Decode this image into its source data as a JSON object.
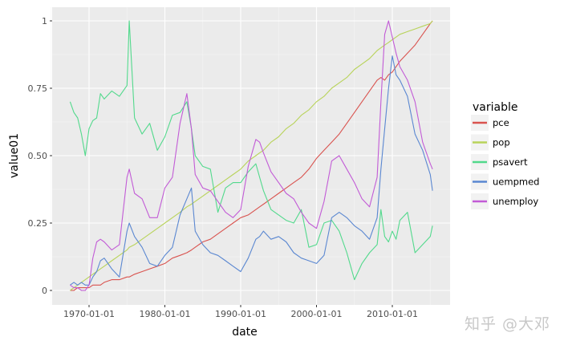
{
  "chart_data": {
    "type": "line",
    "title": "",
    "xlabel": "date",
    "ylabel": "value01",
    "x_ticks": [
      "1970-01-01",
      "1980-01-01",
      "1990-01-01",
      "2000-01-01",
      "2010-01-01"
    ],
    "y_ticks": [
      "0",
      "0.25",
      "0.50",
      "0.75",
      "1"
    ],
    "ylim": [
      -0.05,
      1.05
    ],
    "xlim": [
      1965.1,
      2017.6
    ],
    "grid": true,
    "legend": {
      "title": "variable",
      "position": "right"
    },
    "x": [
      1967.5,
      1968,
      1968.5,
      1969,
      1969.5,
      1970,
      1970.5,
      1971,
      1971.5,
      1972,
      1973,
      1974,
      1975,
      1975.3,
      1976,
      1977,
      1978,
      1979,
      1980,
      1981,
      1982,
      1982.9,
      1983.5,
      1984,
      1985,
      1986,
      1987,
      1988,
      1989,
      1990,
      1991,
      1992,
      1992.5,
      1993,
      1994,
      1995,
      1996,
      1997,
      1998,
      1999,
      2000,
      2001,
      2002,
      2003,
      2004,
      2005,
      2006,
      2007,
      2008,
      2008.5,
      2009,
      2009.5,
      2010,
      2010.5,
      2011,
      2012,
      2013,
      2014,
      2015,
      2015.3
    ],
    "series": [
      {
        "name": "pce",
        "color": "#d9534f",
        "values": [
          0.0,
          0.0,
          0.01,
          0.01,
          0.01,
          0.01,
          0.02,
          0.02,
          0.02,
          0.03,
          0.04,
          0.04,
          0.05,
          0.05,
          0.06,
          0.07,
          0.08,
          0.09,
          0.1,
          0.12,
          0.13,
          0.14,
          0.15,
          0.16,
          0.18,
          0.19,
          0.21,
          0.23,
          0.25,
          0.27,
          0.28,
          0.3,
          0.31,
          0.32,
          0.34,
          0.36,
          0.38,
          0.4,
          0.42,
          0.45,
          0.49,
          0.52,
          0.55,
          0.58,
          0.62,
          0.66,
          0.7,
          0.74,
          0.78,
          0.79,
          0.78,
          0.8,
          0.81,
          0.83,
          0.85,
          0.88,
          0.91,
          0.95,
          0.99,
          1.0
        ]
      },
      {
        "name": "pop",
        "color": "#b8d35a",
        "values": [
          0.0,
          0.01,
          0.02,
          0.03,
          0.04,
          0.05,
          0.06,
          0.07,
          0.08,
          0.09,
          0.11,
          0.13,
          0.15,
          0.16,
          0.17,
          0.19,
          0.21,
          0.23,
          0.25,
          0.27,
          0.29,
          0.31,
          0.32,
          0.33,
          0.35,
          0.37,
          0.39,
          0.41,
          0.43,
          0.45,
          0.48,
          0.5,
          0.51,
          0.52,
          0.55,
          0.57,
          0.6,
          0.62,
          0.65,
          0.67,
          0.7,
          0.72,
          0.75,
          0.77,
          0.79,
          0.82,
          0.84,
          0.86,
          0.89,
          0.9,
          0.91,
          0.92,
          0.93,
          0.94,
          0.95,
          0.96,
          0.97,
          0.98,
          0.99,
          1.0
        ]
      },
      {
        "name": "psavert",
        "color": "#52d98c",
        "values": [
          0.7,
          0.66,
          0.64,
          0.58,
          0.5,
          0.6,
          0.63,
          0.64,
          0.73,
          0.71,
          0.74,
          0.72,
          0.76,
          1.0,
          0.64,
          0.58,
          0.62,
          0.52,
          0.57,
          0.65,
          0.66,
          0.7,
          0.6,
          0.5,
          0.46,
          0.45,
          0.29,
          0.38,
          0.4,
          0.4,
          0.44,
          0.47,
          0.42,
          0.37,
          0.3,
          0.28,
          0.26,
          0.25,
          0.3,
          0.16,
          0.17,
          0.25,
          0.26,
          0.22,
          0.14,
          0.04,
          0.1,
          0.14,
          0.17,
          0.3,
          0.2,
          0.18,
          0.22,
          0.19,
          0.26,
          0.29,
          0.14,
          0.17,
          0.2,
          0.24
        ]
      },
      {
        "name": "uempmed",
        "color": "#5a87d1",
        "values": [
          0.02,
          0.03,
          0.02,
          0.03,
          0.02,
          0.02,
          0.05,
          0.07,
          0.11,
          0.12,
          0.08,
          0.05,
          0.22,
          0.25,
          0.2,
          0.16,
          0.1,
          0.09,
          0.13,
          0.16,
          0.28,
          0.34,
          0.38,
          0.22,
          0.17,
          0.14,
          0.13,
          0.11,
          0.09,
          0.07,
          0.12,
          0.19,
          0.2,
          0.22,
          0.19,
          0.2,
          0.18,
          0.14,
          0.12,
          0.11,
          0.1,
          0.13,
          0.27,
          0.29,
          0.27,
          0.24,
          0.22,
          0.19,
          0.27,
          0.45,
          0.6,
          0.75,
          0.87,
          0.8,
          0.78,
          0.72,
          0.58,
          0.52,
          0.43,
          0.37
        ]
      },
      {
        "name": "unemploy",
        "color": "#c25bd6",
        "values": [
          0.02,
          0.01,
          0.01,
          0.0,
          0.0,
          0.02,
          0.12,
          0.18,
          0.19,
          0.18,
          0.15,
          0.17,
          0.42,
          0.45,
          0.36,
          0.34,
          0.27,
          0.27,
          0.38,
          0.42,
          0.62,
          0.73,
          0.6,
          0.43,
          0.38,
          0.37,
          0.33,
          0.29,
          0.27,
          0.3,
          0.46,
          0.56,
          0.55,
          0.51,
          0.44,
          0.4,
          0.36,
          0.34,
          0.29,
          0.25,
          0.23,
          0.33,
          0.48,
          0.5,
          0.45,
          0.4,
          0.34,
          0.31,
          0.42,
          0.7,
          0.95,
          1.0,
          0.94,
          0.88,
          0.83,
          0.78,
          0.7,
          0.55,
          0.47,
          0.45
        ]
      }
    ]
  },
  "legend": {
    "title": "variable",
    "items": [
      {
        "label": "pce",
        "color": "#d9534f"
      },
      {
        "label": "pop",
        "color": "#b8d35a"
      },
      {
        "label": "psavert",
        "color": "#52d98c"
      },
      {
        "label": "uempmed",
        "color": "#5a87d1"
      },
      {
        "label": "unemploy",
        "color": "#c25bd6"
      }
    ]
  },
  "axes": {
    "xlabel": "date",
    "ylabel": "value01",
    "x_ticks": [
      {
        "label": "1970-01-01",
        "year": 1970
      },
      {
        "label": "1980-01-01",
        "year": 1980
      },
      {
        "label": "1990-01-01",
        "year": 1990
      },
      {
        "label": "2000-01-01",
        "year": 2000
      },
      {
        "label": "2010-01-01",
        "year": 2010
      }
    ],
    "y_ticks": [
      {
        "label": "0",
        "value": 0
      },
      {
        "label": "0.25",
        "value": 0.25
      },
      {
        "label": "0.50",
        "value": 0.5
      },
      {
        "label": "0.75",
        "value": 0.75
      },
      {
        "label": "1",
        "value": 1
      }
    ]
  },
  "colors": {
    "panel_bg": "#ebebeb",
    "grid_major": "#ffffff",
    "grid_minor": "#f5f5f5"
  },
  "watermark": "知乎 @大邓"
}
